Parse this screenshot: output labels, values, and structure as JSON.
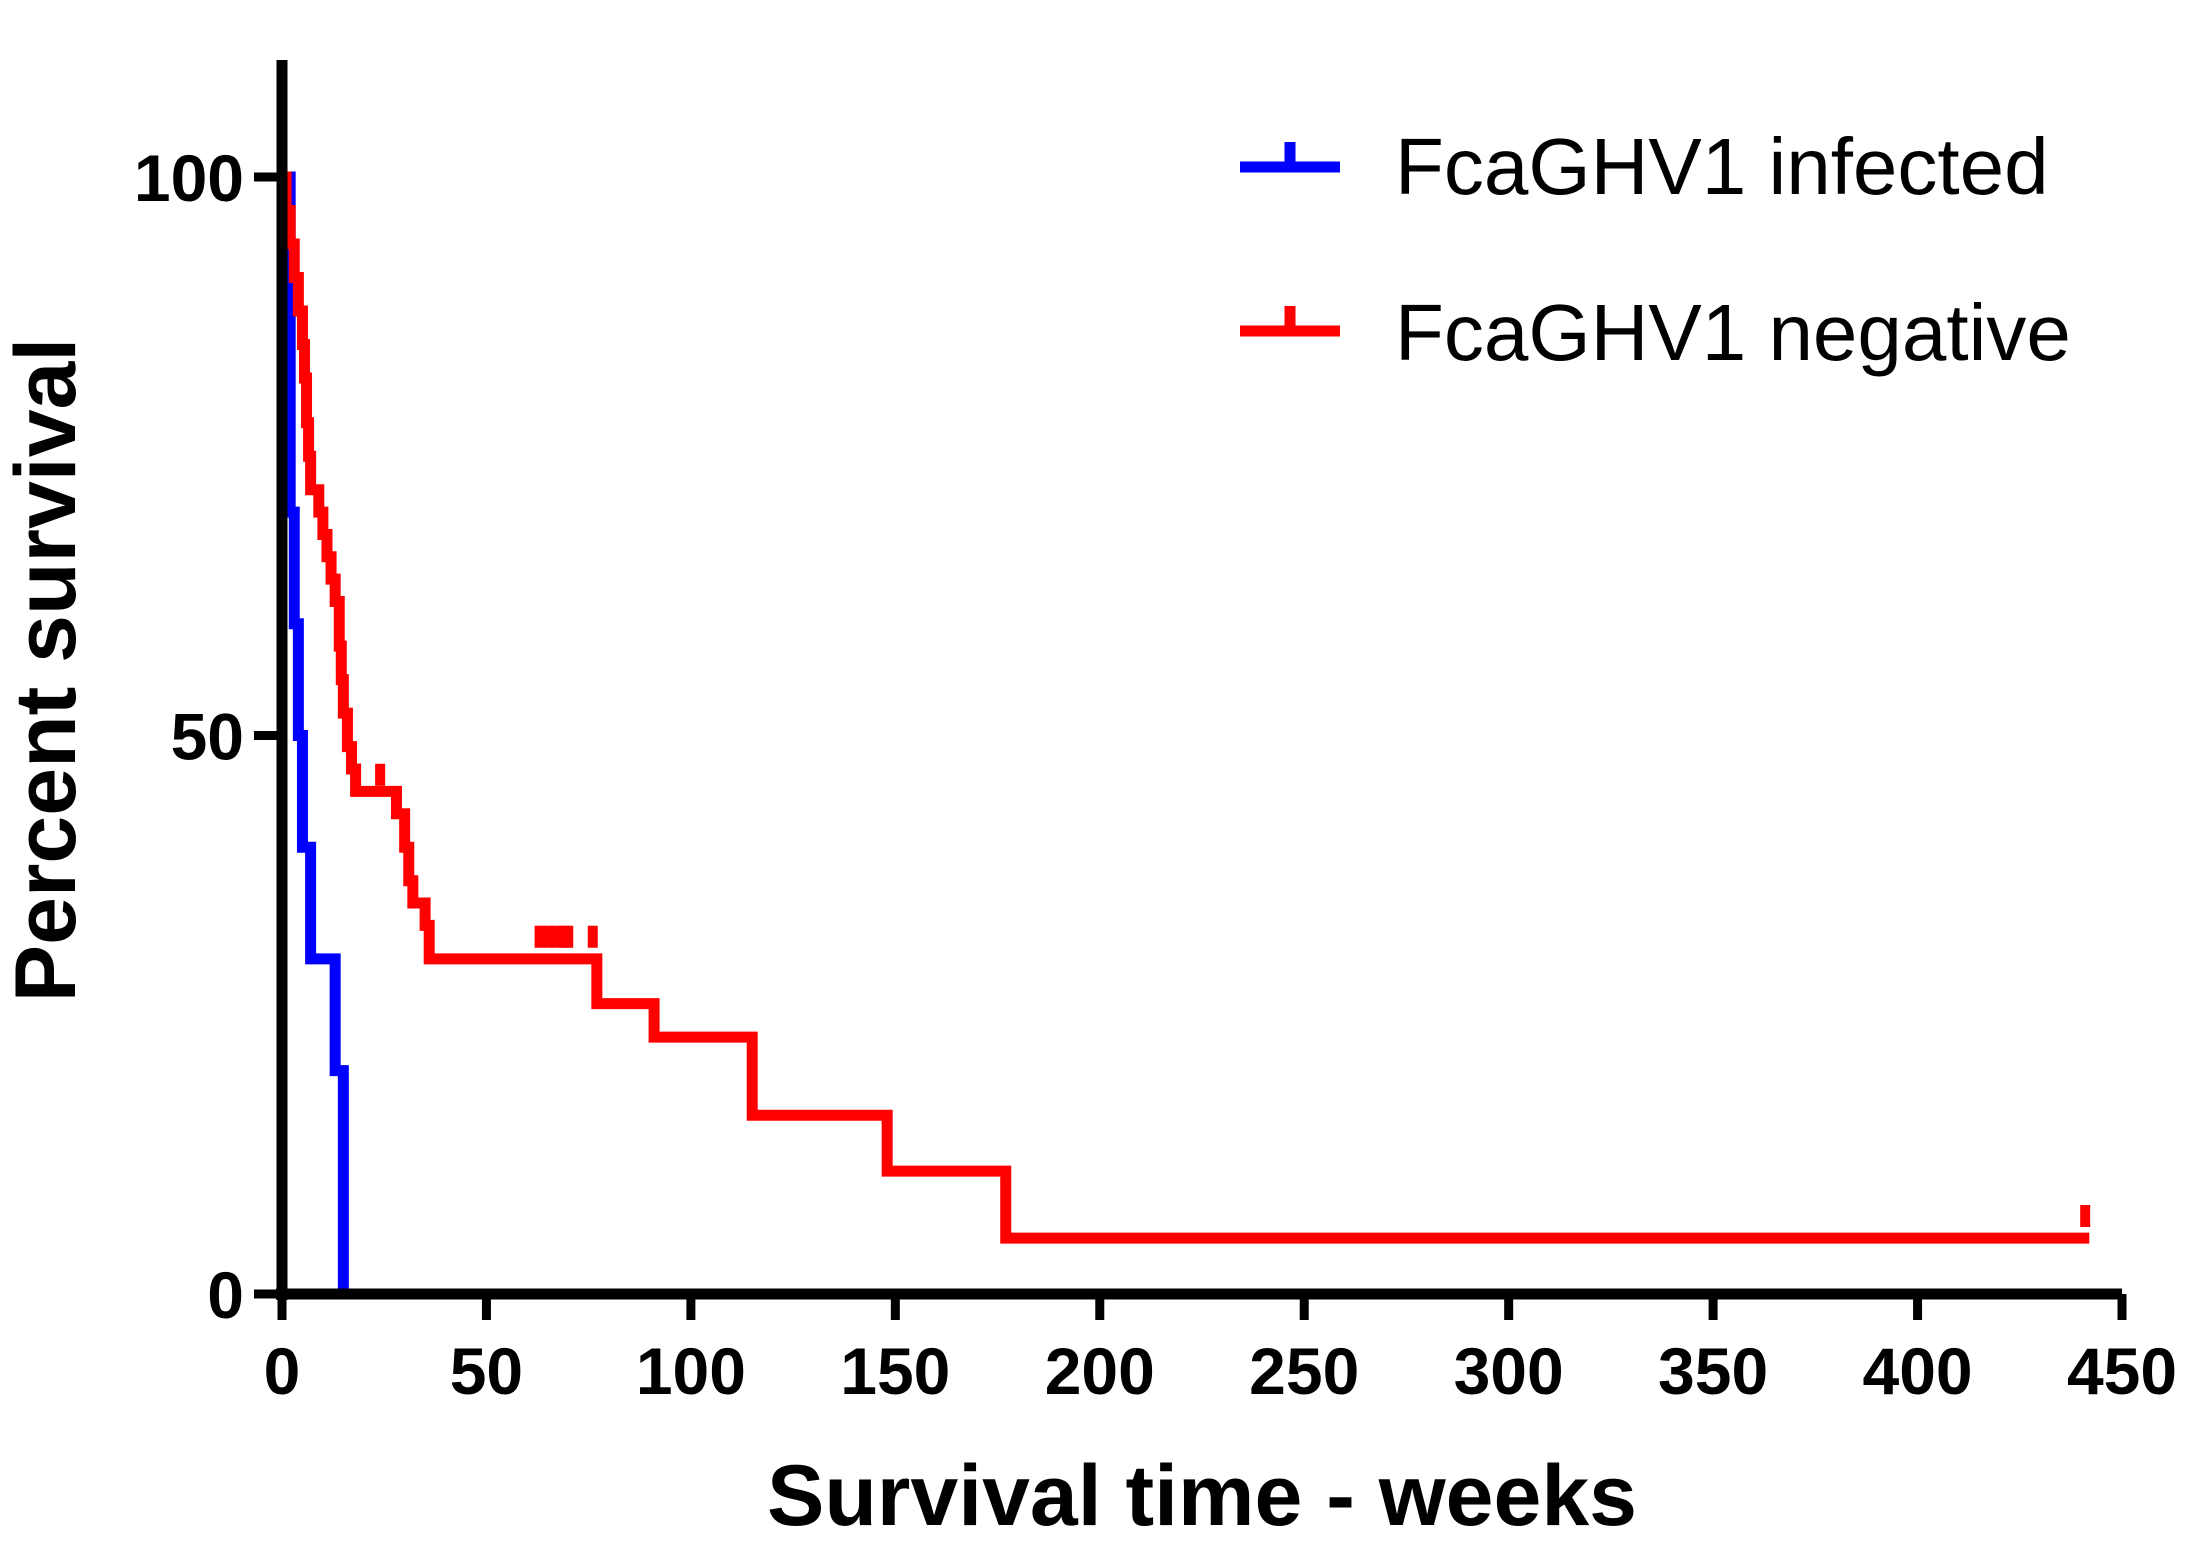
{
  "chart_data": {
    "type": "line",
    "subtype": "kaplan-meier survival step plot",
    "title": "",
    "xlabel": "Survival time - weeks",
    "ylabel": "Percent survival",
    "xlim": [
      0,
      450
    ],
    "ylim": [
      0,
      110
    ],
    "xticks": [
      0,
      50,
      100,
      150,
      200,
      250,
      300,
      350,
      400,
      450
    ],
    "yticks": [
      0,
      50,
      100
    ],
    "grid": false,
    "legend_position": "top-right",
    "series": [
      {
        "name": "FcaGHV1 infected",
        "color": "#0000ff",
        "steps": [
          [
            0,
            100
          ],
          [
            2,
            70
          ],
          [
            3,
            60
          ],
          [
            4,
            50
          ],
          [
            5,
            40
          ],
          [
            7,
            30
          ],
          [
            13,
            20
          ],
          [
            15,
            0
          ]
        ],
        "censored": []
      },
      {
        "name": "FcaGHV1 negative",
        "color": "#ff0000",
        "steps": [
          [
            0,
            100
          ],
          [
            1,
            97
          ],
          [
            2,
            94
          ],
          [
            3,
            91
          ],
          [
            4,
            88
          ],
          [
            5,
            85
          ],
          [
            5.5,
            82
          ],
          [
            6,
            78
          ],
          [
            6.5,
            75
          ],
          [
            7,
            72
          ],
          [
            9,
            70
          ],
          [
            10,
            68
          ],
          [
            11,
            66
          ],
          [
            12,
            64
          ],
          [
            13,
            62
          ],
          [
            14,
            58
          ],
          [
            14.5,
            55
          ],
          [
            15,
            52
          ],
          [
            16,
            49
          ],
          [
            17,
            47
          ],
          [
            18,
            45
          ],
          [
            28,
            43
          ],
          [
            30,
            40
          ],
          [
            31,
            37
          ],
          [
            32,
            35
          ],
          [
            35,
            33
          ],
          [
            36,
            30
          ],
          [
            77,
            26
          ],
          [
            91,
            23
          ],
          [
            115,
            16
          ],
          [
            148,
            11
          ],
          [
            177,
            5
          ]
        ],
        "end": 442,
        "censored": [
          [
            24,
            45.5
          ],
          [
            63,
            31
          ],
          [
            65,
            31
          ],
          [
            67,
            31
          ],
          [
            69,
            31
          ],
          [
            70,
            31
          ],
          [
            76,
            31
          ],
          [
            441,
            6
          ]
        ]
      }
    ]
  }
}
